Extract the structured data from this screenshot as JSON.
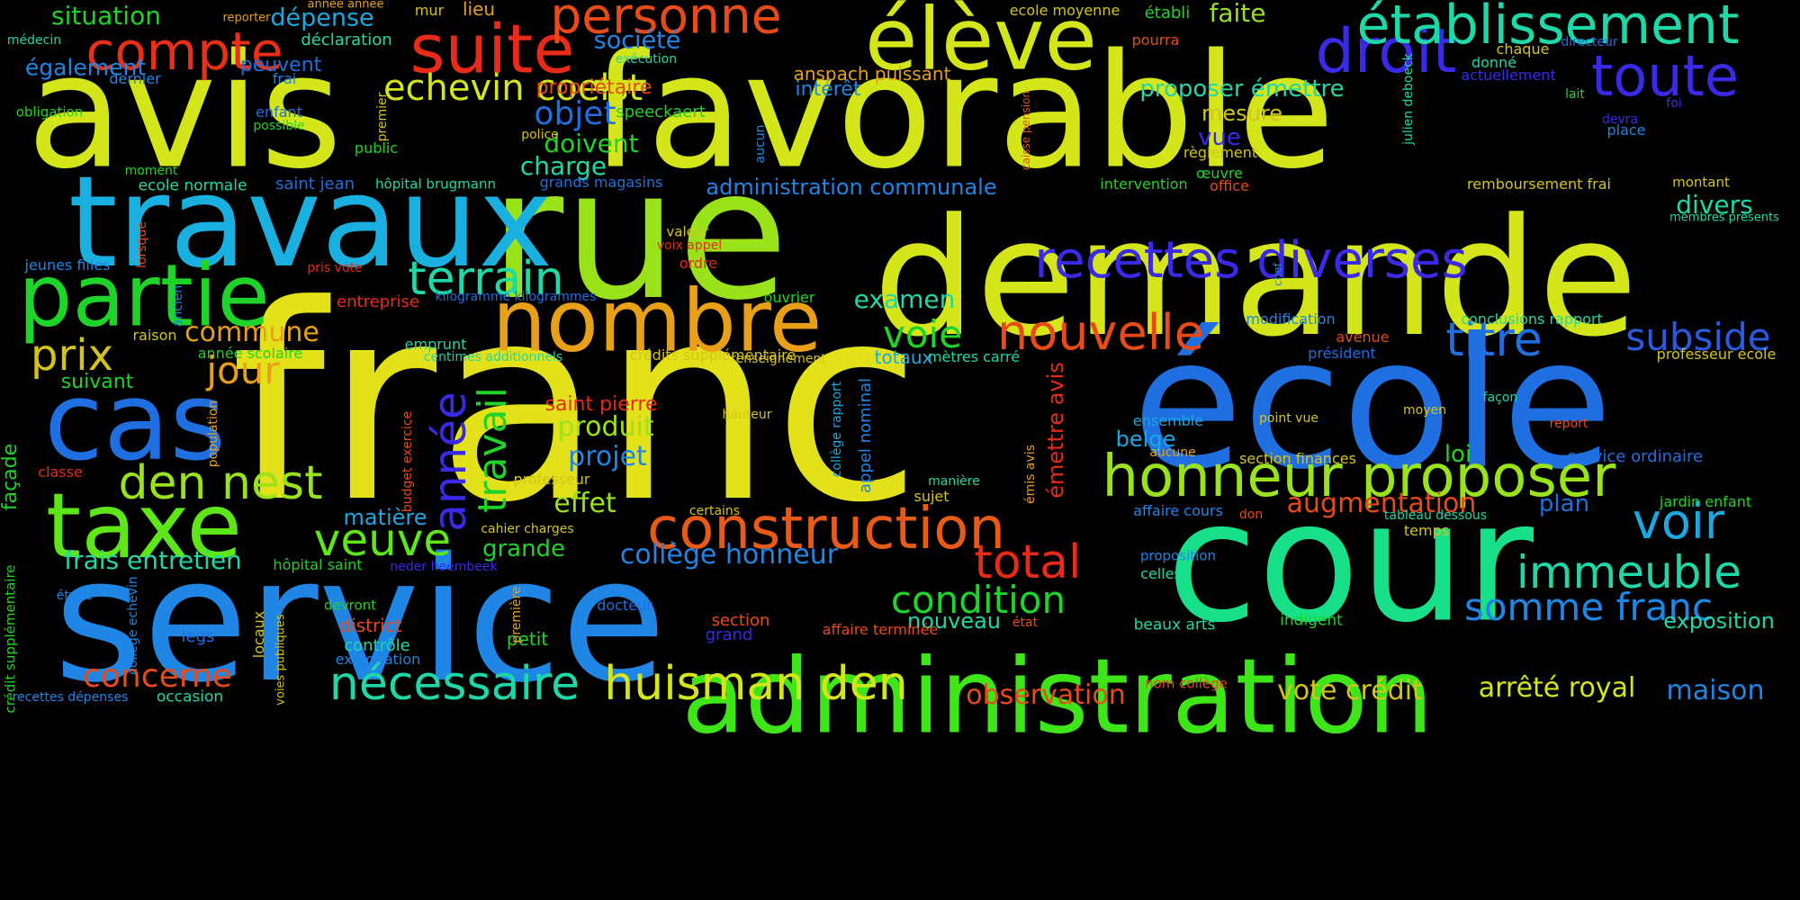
{
  "palette": {
    "lime": "#d4e619",
    "yellow": "#e3e21a",
    "blue": "#1f7ee0",
    "skyblue": "#1aa8e0",
    "green": "#1fd428",
    "springgreen": "#17e088",
    "teal": "#1fd8a8",
    "cyan": "#19c2d8",
    "orange": "#e8a018",
    "redorange": "#e84a18",
    "red": "#e82a18",
    "violet": "#3a2ae8",
    "indigo": "#2a3ae0",
    "chartreuse": "#9ae31a"
  },
  "words": [
    {
      "text": "franc",
      "color": "#e3e21a"
    },
    {
      "text": "avis",
      "color": "#d4e619"
    },
    {
      "text": "favorable",
      "color": "#d4e619"
    },
    {
      "text": "rue",
      "color": "#9ae31a"
    },
    {
      "text": "demande",
      "color": "#d4e619"
    },
    {
      "text": "école",
      "color": "#1f6fe0"
    },
    {
      "text": "cour",
      "color": "#17e088"
    },
    {
      "text": "service",
      "color": "#1f86e6"
    },
    {
      "text": "travaux",
      "color": "#19b0e0"
    },
    {
      "text": "administration",
      "color": "#3ee619"
    },
    {
      "text": "élève",
      "color": "#d4e619"
    },
    {
      "text": "droit",
      "color": "#3a2ae8"
    },
    {
      "text": "établissement",
      "color": "#1fd8a8"
    },
    {
      "text": "toute",
      "color": "#3a2ae8"
    },
    {
      "text": "suite",
      "color": "#e82a18"
    },
    {
      "text": "compte",
      "color": "#e83018"
    },
    {
      "text": "personne",
      "color": "#e84a18"
    },
    {
      "text": "partie",
      "color": "#1fd428"
    },
    {
      "text": "nombre",
      "color": "#e8a018"
    },
    {
      "text": "cas",
      "color": "#1f6fe0"
    },
    {
      "text": "taxe",
      "color": "#5ee619"
    },
    {
      "text": "recettes diverses",
      "color": "#3a2ae8"
    },
    {
      "text": "honneur proposer",
      "color": "#9ae31a"
    },
    {
      "text": "construction",
      "color": "#e85a18"
    },
    {
      "text": "nécessaire",
      "color": "#1fd8a8"
    },
    {
      "text": "huisman den",
      "color": "#d4e619"
    },
    {
      "text": "terrain",
      "color": "#1fd8a8"
    },
    {
      "text": "echevin coelst",
      "color": "#d4e619"
    },
    {
      "text": "den nest",
      "color": "#9ae31a"
    },
    {
      "text": "titre",
      "color": "#1f6fe0"
    },
    {
      "text": "nouvelle",
      "color": "#e84a18"
    },
    {
      "text": "immeuble",
      "color": "#1fd8a8"
    },
    {
      "text": "voir",
      "color": "#1aa8e0"
    },
    {
      "text": "veuve",
      "color": "#5ee619"
    },
    {
      "text": "total",
      "color": "#e82a18"
    },
    {
      "text": "condition",
      "color": "#1fd428"
    },
    {
      "text": "prix",
      "color": "#d4c419"
    },
    {
      "text": "jour",
      "color": "#e8a018"
    },
    {
      "text": "année",
      "color": "#3a2ae8"
    },
    {
      "text": "travail",
      "color": "#1fd428"
    },
    {
      "text": "somme franc",
      "color": "#1f86e6"
    },
    {
      "text": "subside",
      "color": "#2a5ae0"
    },
    {
      "text": "voie",
      "color": "#1fd428"
    },
    {
      "text": "situation",
      "color": "#1fd428"
    },
    {
      "text": "dépense",
      "color": "#1aa8e0"
    },
    {
      "text": "société",
      "color": "#1f86e6"
    },
    {
      "text": "objet",
      "color": "#1f6fe0"
    },
    {
      "text": "doivent",
      "color": "#1fd428"
    },
    {
      "text": "charge",
      "color": "#1fd8a8"
    },
    {
      "text": "mesure",
      "color": "#d4c419"
    },
    {
      "text": "vue",
      "color": "#3a2ae8"
    },
    {
      "text": "faite",
      "color": "#9ae31a"
    },
    {
      "text": "proposer émettre",
      "color": "#1fd8a8"
    },
    {
      "text": "examen",
      "color": "#1fd8a8"
    },
    {
      "text": "divers",
      "color": "#1fd8a8"
    },
    {
      "text": "produit",
      "color": "#9ae31a"
    },
    {
      "text": "projet",
      "color": "#1f86e6"
    },
    {
      "text": "effet",
      "color": "#9ae31a"
    },
    {
      "text": "grande",
      "color": "#1fd428"
    },
    {
      "text": "collège honneur",
      "color": "#1f86e6"
    },
    {
      "text": "augmentation",
      "color": "#e84a18"
    },
    {
      "text": "commune",
      "color": "#e8a018"
    },
    {
      "text": "frais entretien",
      "color": "#1fd8a8"
    },
    {
      "text": "matière",
      "color": "#1aa8e0"
    },
    {
      "text": "belge",
      "color": "#1aa8e0"
    },
    {
      "text": "loi",
      "color": "#1fd428"
    },
    {
      "text": "plan",
      "color": "#1f6fe0"
    },
    {
      "text": "exposition",
      "color": "#1fd8a8"
    },
    {
      "text": "vote crédit",
      "color": "#d4c419"
    },
    {
      "text": "arrêté royal",
      "color": "#d4e619"
    },
    {
      "text": "maison",
      "color": "#1f86e6"
    },
    {
      "text": "observation",
      "color": "#e84a18"
    },
    {
      "text": "concerne",
      "color": "#e84a18"
    },
    {
      "text": "nouveau",
      "color": "#1fd8a8"
    },
    {
      "text": "également",
      "color": "#1f86e6"
    },
    {
      "text": "peuvent",
      "color": "#1f6fe0"
    },
    {
      "text": "intérêt",
      "color": "#1f86e6"
    },
    {
      "text": "propriétaire",
      "color": "#e84a18"
    },
    {
      "text": "administration communale",
      "color": "#1f86e6"
    },
    {
      "text": "saint pierre",
      "color": "#e82a18"
    },
    {
      "text": "totaux",
      "color": "#1aa8e0"
    },
    {
      "text": "contrôle",
      "color": "#1fd8a8"
    },
    {
      "text": "district",
      "color": "#e84a18"
    },
    {
      "text": "petit",
      "color": "#1fd428"
    },
    {
      "text": "section",
      "color": "#e84a18"
    },
    {
      "text": "grand",
      "color": "#3a2ae8"
    },
    {
      "text": "legs",
      "color": "#1f6fe0"
    },
    {
      "text": "façade",
      "color": "#1fd428"
    },
    {
      "text": "suivant",
      "color": "#1fd428"
    },
    {
      "text": "raison",
      "color": "#d4c419"
    },
    {
      "text": "anspach puissant",
      "color": "#e8a018"
    },
    {
      "text": "lieu",
      "color": "#e8a018"
    },
    {
      "text": "déclaration",
      "color": "#1fd8a8"
    },
    {
      "text": "médecin",
      "color": "#1fd8a8"
    },
    {
      "text": "exécution",
      "color": "#1fd8a8"
    },
    {
      "text": "dernier",
      "color": "#1f86e6"
    },
    {
      "text": "frai",
      "color": "#1f86e6"
    },
    {
      "text": "obligation",
      "color": "#1fd428"
    },
    {
      "text": "enfant",
      "color": "#1f6fe0"
    },
    {
      "text": "possible",
      "color": "#1fd428"
    },
    {
      "text": "public",
      "color": "#1fd428"
    },
    {
      "text": "premier",
      "color": "#d4c419"
    },
    {
      "text": "police",
      "color": "#d4c419"
    },
    {
      "text": "speeckaert",
      "color": "#1fd428"
    },
    {
      "text": "aucun",
      "color": "#1f86e6"
    },
    {
      "text": "moment",
      "color": "#1fd428"
    },
    {
      "text": "ecole normale",
      "color": "#1fd8a8"
    },
    {
      "text": "saint jean",
      "color": "#1f6fe0"
    },
    {
      "text": "hôpital brugmann",
      "color": "#1fd8a8"
    },
    {
      "text": "grands magasins",
      "color": "#1f6fe0"
    },
    {
      "text": "jeunes filles",
      "color": "#1f86e6"
    },
    {
      "text": "lorsque",
      "color": "#e84a18"
    },
    {
      "text": "ancien",
      "color": "#1f86e6"
    },
    {
      "text": "pris vote",
      "color": "#e82a18"
    },
    {
      "text": "entreprise",
      "color": "#e82a18"
    },
    {
      "text": "kilogramme kilogrammes",
      "color": "#1f6fe0"
    },
    {
      "text": "valeur",
      "color": "#d4c419"
    },
    {
      "text": "voix appel",
      "color": "#e82a18"
    },
    {
      "text": "ordre",
      "color": "#e82a18"
    },
    {
      "text": "ouvrier",
      "color": "#1fd428"
    },
    {
      "text": "emprunt",
      "color": "#1fd8a8"
    },
    {
      "text": "année scolaire",
      "color": "#1fd428"
    },
    {
      "text": "centimes additionnels",
      "color": "#1fd8a8"
    },
    {
      "text": "crédits supplémentaire",
      "color": "#d4c419"
    },
    {
      "text": "renseignement",
      "color": "#d4c419"
    },
    {
      "text": "population",
      "color": "#e8a018"
    },
    {
      "text": "classe",
      "color": "#e82a18"
    },
    {
      "text": "professeur",
      "color": "#d4c419"
    },
    {
      "text": "budget exercice",
      "color": "#e84a18"
    },
    {
      "text": "hauteur",
      "color": "#d4c419"
    },
    {
      "text": "collège rapport",
      "color": "#1aa8e0"
    },
    {
      "text": "appel nominal",
      "color": "#1f86e6"
    },
    {
      "text": "manière",
      "color": "#1fd8a8"
    },
    {
      "text": "sujet",
      "color": "#d4c419"
    },
    {
      "text": "émis avis",
      "color": "#e8a018"
    },
    {
      "text": "émettre avis",
      "color": "#e82a18"
    },
    {
      "text": "certains",
      "color": "#d4c419"
    },
    {
      "text": "cahier charges",
      "color": "#d4c419"
    },
    {
      "text": "hôpital saint",
      "color": "#1fd428"
    },
    {
      "text": "neder heembeek",
      "color": "#3a2ae8"
    },
    {
      "text": "étude",
      "color": "#1f86e6"
    },
    {
      "text": "devront",
      "color": "#1fd428"
    },
    {
      "text": "collège echevin",
      "color": "#1f86e6"
    },
    {
      "text": "crédit supplémentaire",
      "color": "#1fd428"
    },
    {
      "text": "voies publiques",
      "color": "#d4c419"
    },
    {
      "text": "locaux",
      "color": "#d4c419"
    },
    {
      "text": "première",
      "color": "#e8a018"
    },
    {
      "text": "exploitation",
      "color": "#1f86e6"
    },
    {
      "text": "docteur",
      "color": "#1f6fe0"
    },
    {
      "text": "recettes dépenses",
      "color": "#1f86e6"
    },
    {
      "text": "occasion",
      "color": "#1fd8a8"
    },
    {
      "text": "affaire terminée",
      "color": "#e84a18"
    },
    {
      "text": "état",
      "color": "#e84a18"
    },
    {
      "text": "beaux arts",
      "color": "#1fd8a8"
    },
    {
      "text": "indigent",
      "color": "#1fd428"
    },
    {
      "text": "nom collège",
      "color": "#e84a18"
    },
    {
      "text": "proposition",
      "color": "#1f86e6"
    },
    {
      "text": "celles",
      "color": "#1fd8a8"
    },
    {
      "text": "affaire cours",
      "color": "#1f86e6"
    },
    {
      "text": "don",
      "color": "#e84a18"
    },
    {
      "text": "tableau dessous",
      "color": "#1fd8a8"
    },
    {
      "text": "temps",
      "color": "#d4c419"
    },
    {
      "text": "jardin enfant",
      "color": "#1fd428"
    },
    {
      "text": "service ordinaire",
      "color": "#1f6fe0"
    },
    {
      "text": "section finances",
      "color": "#d4c419"
    },
    {
      "text": "aucune",
      "color": "#e8a018"
    },
    {
      "text": "ensemble",
      "color": "#1aa8e0"
    },
    {
      "text": "point vue",
      "color": "#d4c419"
    },
    {
      "text": "moyen",
      "color": "#d4c419"
    },
    {
      "text": "report",
      "color": "#e84a18"
    },
    {
      "text": "façon",
      "color": "#1fd8a8"
    },
    {
      "text": "professeur ecole",
      "color": "#d4c419"
    },
    {
      "text": "mètres carré",
      "color": "#1fd8a8"
    },
    {
      "text": "président",
      "color": "#1f6fe0"
    },
    {
      "text": "avenue",
      "color": "#e84a18"
    },
    {
      "text": "modification",
      "color": "#1f86e6"
    },
    {
      "text": "conclusions rapport",
      "color": "#1fd8a8"
    },
    {
      "text": "chef",
      "color": "#1f86e6"
    },
    {
      "text": "membres présents",
      "color": "#1fd8a8"
    },
    {
      "text": "montant",
      "color": "#d4c419"
    },
    {
      "text": "remboursement frai",
      "color": "#d4c419"
    },
    {
      "text": "office",
      "color": "#e84a18"
    },
    {
      "text": "intervention",
      "color": "#1fd428"
    },
    {
      "text": "place",
      "color": "#1f86e6"
    },
    {
      "text": "règlement",
      "color": "#d4c419"
    },
    {
      "text": "œuvre",
      "color": "#1fd428"
    },
    {
      "text": "caisse pension",
      "color": "#e84a18"
    },
    {
      "text": "julien deboeck",
      "color": "#1fd8a8"
    },
    {
      "text": "devra",
      "color": "#3a2ae8"
    },
    {
      "text": "lait",
      "color": "#1fd428"
    },
    {
      "text": "foi",
      "color": "#3a2ae8"
    },
    {
      "text": "actuellement",
      "color": "#3a2ae8"
    },
    {
      "text": "donné",
      "color": "#1fd8a8"
    },
    {
      "text": "chaque",
      "color": "#d4c419"
    },
    {
      "text": "directeur",
      "color": "#1f6fe0"
    },
    {
      "text": "pourra",
      "color": "#e84a18"
    },
    {
      "text": "établi",
      "color": "#1fd428"
    },
    {
      "text": "ecole moyenne",
      "color": "#d4c419"
    },
    {
      "text": "mur",
      "color": "#d4c419"
    },
    {
      "text": "année année",
      "color": "#e8a018"
    },
    {
      "text": "reporter",
      "color": "#e8a018"
    }
  ]
}
